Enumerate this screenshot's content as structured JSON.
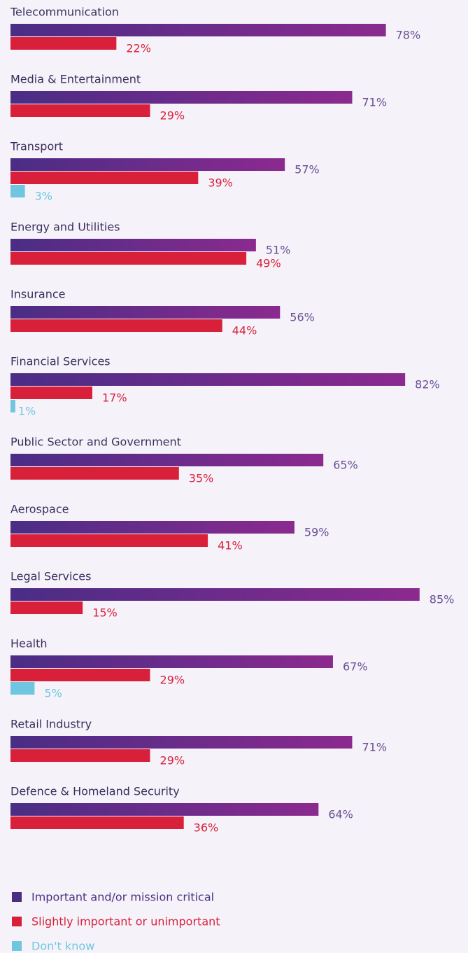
{
  "chart_data": {
    "type": "bar",
    "orientation": "horizontal",
    "categories": [
      "Telecommunication",
      "Media & Entertainment",
      "Transport",
      "Energy and Utilities",
      "Insurance",
      "Financial Services",
      "Public Sector and Government",
      "Aerospace",
      "Legal Services",
      "Health",
      "Retail Industry",
      "Defence & Homeland Security"
    ],
    "series": [
      {
        "name": "Important and/or mission critical",
        "color": "#4b2e83",
        "values": [
          78,
          71,
          57,
          51,
          56,
          82,
          65,
          59,
          85,
          67,
          71,
          64
        ],
        "value_labels": [
          "78%",
          "71%",
          "57%",
          "51%",
          "56%",
          "82%",
          "65%",
          "59%",
          "85%",
          "67%",
          "71%",
          "64%"
        ]
      },
      {
        "name": "Slightly important or unimportant",
        "color": "#d9203b",
        "values": [
          22,
          29,
          39,
          49,
          44,
          17,
          35,
          41,
          15,
          29,
          29,
          36
        ],
        "value_labels": [
          "22%",
          "29%",
          "39%",
          "49%",
          "44%",
          "17%",
          "35%",
          "41%",
          "15%",
          "29%",
          "29%",
          "36%"
        ]
      },
      {
        "name": "Don't know",
        "color": "#6fc6e0",
        "values": [
          null,
          null,
          3,
          null,
          null,
          1,
          null,
          null,
          null,
          5,
          null,
          null
        ],
        "value_labels": [
          null,
          null,
          "3%",
          null,
          null,
          "1%",
          null,
          null,
          null,
          "5%",
          null,
          null
        ]
      }
    ]
  }
}
